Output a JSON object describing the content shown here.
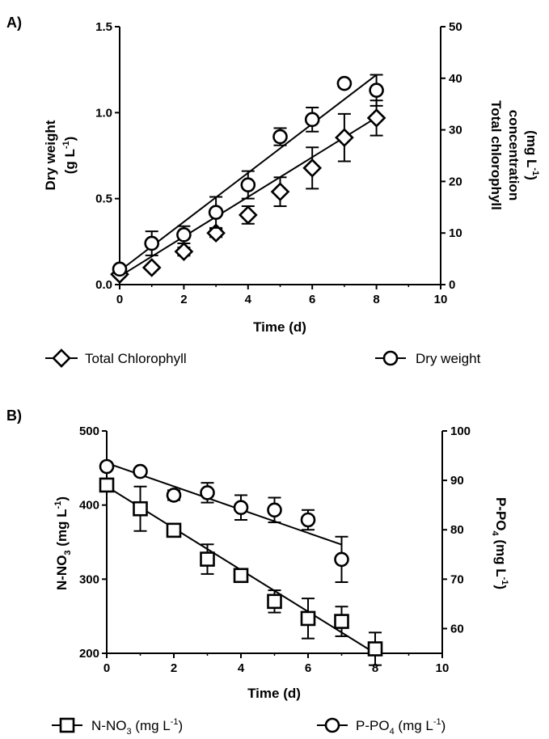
{
  "chart_data": [
    {
      "panel_label": "A)",
      "type": "scatter",
      "xlabel": "Time (d)",
      "ylabel_left": {
        "main": "Dry weight",
        "unit": "(g L",
        "sup": "-1",
        "close": ")"
      },
      "ylabel_right": {
        "line1": "Total chlorophyll",
        "line2": "concentration",
        "unit": "(mg L",
        "sup": "-1",
        "close": ")"
      },
      "xlim": [
        0,
        10
      ],
      "xticks": [
        "0",
        "2",
        "4",
        "6",
        "8",
        "10"
      ],
      "ylim_left": [
        0,
        1.5
      ],
      "yticks_left": [
        "0.0",
        "0.5",
        "1.0",
        "1.5"
      ],
      "ylim_right": [
        0,
        50
      ],
      "yticks_right": [
        "0",
        "10",
        "20",
        "30",
        "40",
        "50"
      ],
      "grid": false,
      "legend_placement": "bottom",
      "series": [
        {
          "name": "Total Chlorophyll",
          "marker": "diamond",
          "axis": "right",
          "x": [
            0,
            1,
            2,
            3,
            4,
            5,
            6,
            7,
            8
          ],
          "y": [
            2.0,
            3.3,
            6.4,
            10.0,
            13.5,
            18.0,
            22.6,
            28.5,
            32.3
          ],
          "err": [
            0.5,
            0.5,
            0.8,
            0.8,
            1.7,
            2.8,
            4.0,
            4.6,
            3.4
          ],
          "fit": [
            [
              0,
              1.6
            ],
            [
              8,
              32.4
            ]
          ]
        },
        {
          "name": "Dry weight",
          "marker": "circle",
          "axis": "left",
          "x": [
            0,
            1,
            2,
            3,
            4,
            5,
            6,
            7,
            8
          ],
          "y": [
            0.09,
            0.24,
            0.29,
            0.42,
            0.58,
            0.86,
            0.96,
            1.17,
            1.13
          ],
          "err": [
            0.02,
            0.07,
            0.05,
            0.09,
            0.08,
            0.05,
            0.07,
            0.01,
            0.09
          ],
          "fit": [
            [
              0,
              0.08
            ],
            [
              8,
              1.22
            ]
          ]
        }
      ]
    },
    {
      "panel_label": "B)",
      "type": "scatter",
      "xlabel": "Time (d)",
      "ylabel_left": {
        "main": "N-NO",
        "sub": "3",
        "unit": " (mg L",
        "sup": "-1",
        "close": ")"
      },
      "ylabel_right": {
        "main": "P-PO",
        "sub": "4",
        "unit": " (mg L",
        "sup": "-1",
        "close": ")"
      },
      "xlim": [
        0,
        10
      ],
      "xticks": [
        "0",
        "2",
        "4",
        "6",
        "8",
        "10"
      ],
      "ylim_left": [
        200,
        500
      ],
      "yticks_left": [
        "200",
        "300",
        "400",
        "500"
      ],
      "ylim_right": [
        55,
        100
      ],
      "yticks_right": [
        "60",
        "70",
        "80",
        "90",
        "100"
      ],
      "grid": false,
      "legend_placement": "bottom",
      "series": [
        {
          "name": "N-NO3 (mg L-1)",
          "marker": "square",
          "axis": "left",
          "x": [
            0,
            1,
            2,
            3,
            4,
            5,
            6,
            7,
            8
          ],
          "y": [
            427,
            395,
            366,
            327,
            305,
            270,
            247,
            243,
            206
          ],
          "err": [
            5,
            30,
            5,
            20,
            5,
            15,
            27,
            20,
            22
          ],
          "fit": [
            [
              0,
              425
            ],
            [
              8,
              200
            ]
          ]
        },
        {
          "name": "P-PO4 (mg L-1)",
          "marker": "circle",
          "axis": "right",
          "x": [
            0,
            1,
            2,
            3,
            4,
            5,
            6,
            7
          ],
          "y": [
            92.8,
            91.8,
            87.0,
            87.5,
            84.5,
            84.0,
            82.0,
            74.0
          ],
          "err": [
            0.5,
            0.5,
            1.0,
            2.0,
            2.5,
            2.5,
            2.0,
            4.6
          ],
          "fit": [
            [
              0,
              93.5
            ],
            [
              7,
              77.0
            ]
          ]
        }
      ]
    }
  ],
  "legend_a": {
    "item1": "Total Chlorophyll",
    "item2": "Dry weight"
  },
  "legend_b": {
    "item1": {
      "main": "N-NO",
      "sub": "3",
      "unit": " (mg L",
      "sup": "-1",
      "close": ")"
    },
    "item2": {
      "main": "P-PO",
      "sub": "4",
      "unit": " (mg L",
      "sup": "-1",
      "close": ")"
    }
  }
}
